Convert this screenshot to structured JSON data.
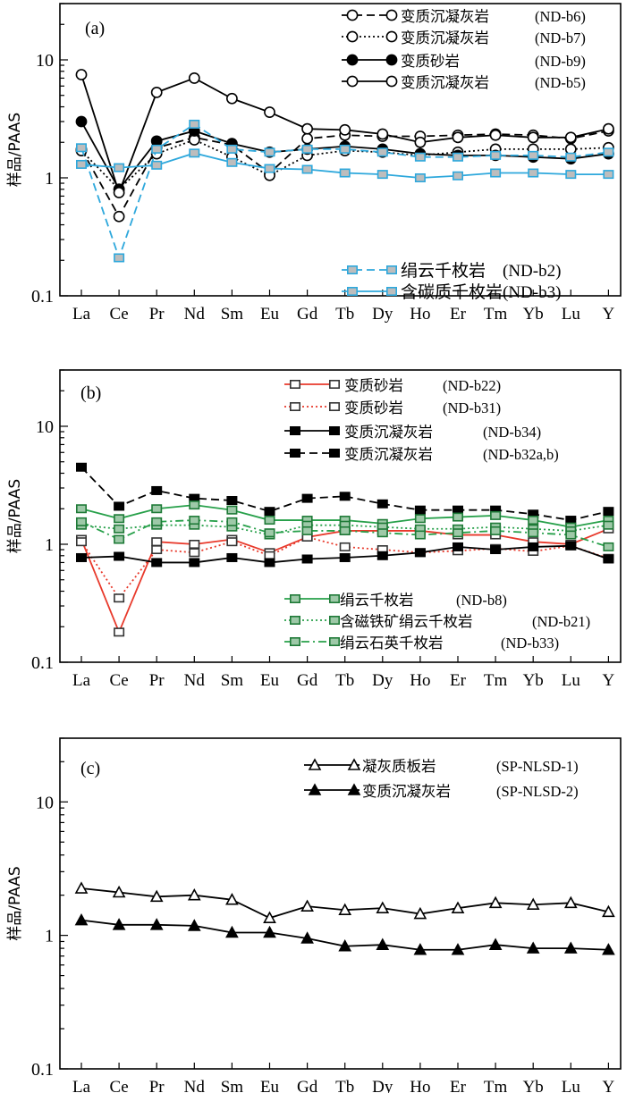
{
  "chart_data": [
    {
      "type": "line",
      "panel_label": "(a)",
      "ylabel": "样品/PAAS",
      "yscale": "log",
      "ylim": [
        0.1,
        30
      ],
      "yticks": [
        "0.1",
        "1",
        "10"
      ],
      "categories": [
        "La",
        "Ce",
        "Pr",
        "Nd",
        "Sm",
        "Eu",
        "Gd",
        "Tb",
        "Dy",
        "Ho",
        "Er",
        "Tm",
        "Yb",
        "Lu",
        "Y"
      ],
      "legend_position": "top-right",
      "series": [
        {
          "name": "变质沉凝灰岩",
          "sample": "(ND-b6)",
          "color": "#000000",
          "dash": "dashed",
          "marker": "circle-open",
          "values": [
            1.75,
            0.47,
            1.8,
            2.2,
            1.9,
            1.1,
            2.15,
            2.3,
            2.25,
            2.25,
            2.3,
            2.35,
            2.3,
            2.15,
            2.5
          ]
        },
        {
          "name": "变质沉凝灰岩",
          "sample": "(ND-b7)",
          "color": "#000000",
          "dash": "dotted",
          "marker": "circle-open",
          "values": [
            1.7,
            0.8,
            1.6,
            2.1,
            1.5,
            1.05,
            1.55,
            1.7,
            1.65,
            1.55,
            1.65,
            1.75,
            1.75,
            1.75,
            1.8
          ]
        },
        {
          "name": "变质砂岩",
          "sample": "(ND-b9)",
          "color": "#000000",
          "dash": "solid",
          "marker": "circle-filled",
          "values": [
            3.0,
            0.8,
            2.05,
            2.5,
            1.95,
            1.65,
            1.75,
            1.85,
            1.75,
            1.6,
            1.55,
            1.55,
            1.5,
            1.45,
            1.6
          ]
        },
        {
          "name": "变质沉凝灰岩",
          "sample": "(ND-b5)",
          "color": "#000000",
          "dash": "solid",
          "marker": "circle-open",
          "values": [
            7.5,
            0.75,
            5.3,
            7.0,
            4.7,
            3.6,
            2.6,
            2.55,
            2.35,
            2.0,
            2.2,
            2.3,
            2.2,
            2.2,
            2.6
          ]
        },
        {
          "name": "绢云千枚岩",
          "sample": "(ND-b2)",
          "color": "#2ea8dc",
          "dash": "dashed",
          "marker": "square-gray",
          "values": [
            1.8,
            0.21,
            1.75,
            2.85,
            1.75,
            1.65,
            1.75,
            1.75,
            1.65,
            1.5,
            1.5,
            1.55,
            1.55,
            1.5,
            1.65
          ]
        },
        {
          "name": "含碳质千枚岩",
          "sample": "(ND-b3)",
          "color": "#2ea8dc",
          "dash": "solid",
          "marker": "square-gray",
          "values": [
            1.3,
            1.22,
            1.28,
            1.62,
            1.35,
            1.2,
            1.18,
            1.1,
            1.07,
            1.0,
            1.04,
            1.1,
            1.1,
            1.07,
            1.07
          ]
        }
      ]
    },
    {
      "type": "line",
      "panel_label": "(b)",
      "ylabel": "样品/PAAS",
      "yscale": "log",
      "ylim": [
        0.1,
        30
      ],
      "yticks": [
        "0.1",
        "1",
        "10"
      ],
      "categories": [
        "La",
        "Ce",
        "Pr",
        "Nd",
        "Sm",
        "Eu",
        "Gd",
        "Tb",
        "Dy",
        "Ho",
        "Er",
        "Tm",
        "Yb",
        "Lu",
        "Y"
      ],
      "legend_position": "top-center and bottom-center",
      "series": [
        {
          "name": "变质砂岩",
          "sample": "(ND-b22)",
          "color": "#e8392b",
          "dash": "solid",
          "marker": "square-open",
          "values": [
            1.1,
            0.18,
            1.05,
            1.0,
            1.1,
            0.85,
            1.15,
            1.3,
            1.3,
            1.3,
            1.2,
            1.2,
            1.05,
            1.0,
            1.35
          ]
        },
        {
          "name": "变质砂岩",
          "sample": "(ND-b31)",
          "color": "#e8392b",
          "dash": "dotted",
          "marker": "square-open",
          "values": [
            1.05,
            0.35,
            0.9,
            0.85,
            1.05,
            0.8,
            1.15,
            0.95,
            0.9,
            0.85,
            0.88,
            0.92,
            0.87,
            0.97,
            0.76
          ]
        },
        {
          "name": "变质沉凝灰岩",
          "sample": "(ND-b34)",
          "color": "#000000",
          "dash": "solid",
          "marker": "square-filled",
          "values": [
            0.77,
            0.79,
            0.7,
            0.7,
            0.77,
            0.7,
            0.75,
            0.77,
            0.8,
            0.85,
            0.95,
            0.9,
            0.95,
            0.97,
            0.75
          ]
        },
        {
          "name": "变质沉凝灰岩",
          "sample": "(ND-b32a,b)",
          "color": "#000000",
          "dash": "dashed",
          "marker": "square-filled",
          "values": [
            4.5,
            2.1,
            2.85,
            2.45,
            2.35,
            1.9,
            2.45,
            2.55,
            2.2,
            1.95,
            1.95,
            1.95,
            1.8,
            1.6,
            1.9
          ]
        },
        {
          "name": "绢云千枚岩",
          "sample": "(ND-b8)",
          "color": "#27a04a",
          "dash": "solid",
          "marker": "square-dark",
          "values": [
            2.0,
            1.65,
            2.0,
            2.15,
            1.95,
            1.6,
            1.6,
            1.6,
            1.5,
            1.65,
            1.7,
            1.75,
            1.6,
            1.4,
            1.6
          ]
        },
        {
          "name": "含磁铁矿绢云千枚岩",
          "sample": "(ND-b21)",
          "color": "#27a04a",
          "dash": "dotted",
          "marker": "square-dark",
          "values": [
            1.45,
            1.35,
            1.45,
            1.45,
            1.4,
            1.2,
            1.45,
            1.45,
            1.4,
            1.35,
            1.35,
            1.4,
            1.35,
            1.3,
            1.45
          ]
        },
        {
          "name": "绢云石英千枚岩",
          "sample": "(ND-b33)",
          "color": "#27a04a",
          "dash": "dashdot",
          "marker": "square-dark",
          "values": [
            1.55,
            1.1,
            1.55,
            1.6,
            1.55,
            1.25,
            1.3,
            1.3,
            1.25,
            1.2,
            1.25,
            1.3,
            1.25,
            1.2,
            0.95
          ]
        }
      ]
    },
    {
      "type": "line",
      "panel_label": "(c)",
      "ylabel": "样品/PAAS",
      "yscale": "log",
      "ylim": [
        0.1,
        30
      ],
      "yticks": [
        "0.1",
        "1",
        "10"
      ],
      "categories": [
        "La",
        "Ce",
        "Pr",
        "Nd",
        "Sm",
        "Eu",
        "Gd",
        "Tb",
        "Dy",
        "Ho",
        "Er",
        "Tm",
        "Yb",
        "Lu",
        "Y"
      ],
      "legend_position": "top-right",
      "series": [
        {
          "name": "凝灰质板岩",
          "sample": "(SP-NLSD-1)",
          "color": "#000000",
          "dash": "solid",
          "marker": "triangle-open",
          "values": [
            2.25,
            2.1,
            1.95,
            2.0,
            1.85,
            1.35,
            1.65,
            1.55,
            1.6,
            1.45,
            1.6,
            1.75,
            1.7,
            1.75,
            1.5
          ]
        },
        {
          "name": "变质沉凝灰岩",
          "sample": "(SP-NLSD-2)",
          "color": "#000000",
          "dash": "solid",
          "marker": "triangle-filled",
          "values": [
            1.3,
            1.2,
            1.2,
            1.18,
            1.05,
            1.05,
            0.95,
            0.83,
            0.85,
            0.78,
            0.78,
            0.85,
            0.8,
            0.8,
            0.78
          ]
        }
      ]
    }
  ]
}
